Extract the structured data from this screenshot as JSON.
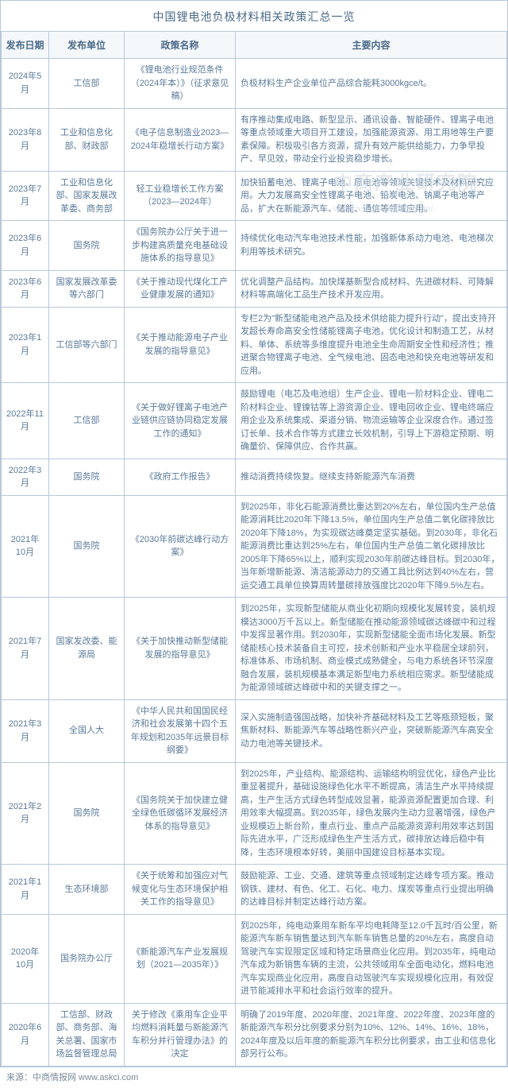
{
  "title": "中国锂电池负极材料相关政策汇总一览",
  "columns": [
    "发布日期",
    "发布单位",
    "政策名称",
    "主要内容"
  ],
  "rows": [
    {
      "date": "2024年5月",
      "dept": "工信部",
      "policy": "《锂电池行业规范条件（2024年本）》（征求意见稿）",
      "content": "负极材料生产企业单位产品综合能耗3000kgce/t。"
    },
    {
      "date": "2023年8月",
      "dept": "工业和信息化部、财政部",
      "policy": "《电子信息制造业2023—2024年稳增长行动方案》",
      "content": "有序推动集成电路、新型显示、通讯设备、智能硬件、锂离子电池等重点领域重大项目开工建设，加强能源资源、用工用地等生产要素保障。积极吸引各方资源，提升有效产能供给能力，力争早投产、早见效，带动全行业投资稳步增长。"
    },
    {
      "date": "2023年7月",
      "dept": "工业和信息化部、国家发展改革委、商务部",
      "policy": "轻工业稳增长工作方案（2023—2024年）",
      "content": "加快铅蓄电池、锂离子电池、原电池等领域关键技术及材料研究应用。大力发展高安全性锂离子电池、铅炭电池、钠离子电池等产品，扩大在新能源汽车、储能、通信等领域应用。"
    },
    {
      "date": "2023年6月",
      "dept": "国务院",
      "policy": "《国务院办公厅关于进一步构建高质量充电基础设施体系的指导意见》",
      "content": "持续优化电动汽车电池技术性能，加强新体系动力电池、电池梯次利用等技术研究。"
    },
    {
      "date": "2023年6月",
      "dept": "国家发展改革委等六部门",
      "policy": "《关于推动现代煤化工产业健康发展的通知》",
      "content": "优化调整产品结构。加快煤基新型合成材料、先进碳材料、可降解材料等高端化工品生产技术开发应用。"
    },
    {
      "date": "2023年1月",
      "dept": "工信部等六部门",
      "policy": "《关于推动能源电子产业发展的指导意见》",
      "content": "专栏2为\"新型储能电池产品及技术供给能力提升行动\"，提出支持开发超长寿命高安全性储能锂离子电池，优化设计和制造工艺，从材料、单体、系统等多维度提升电池全生命周期安全性和经济性；推进聚合物锂离子电池、全气候电池、固态电池和快充电池等研发和应用。"
    },
    {
      "date": "2022年11月",
      "dept": "工信部",
      "policy": "《关于做好锂离子电池产业链供应链协同稳定发展工作的通知》",
      "content": "鼓励锂电（电芯及电池组）生产企业、锂电一阶材料企业、锂电二阶材料企业、锂镍钴等上游资源企业、锂电回收企业、锂电终端应用企业及系统集成、渠道分销、物流运输等企业深度合作。通过签订长单、技术合作等方式建立长效机制，引导上下游稳定预期、明确量价、保障供应、合作共赢。"
    },
    {
      "date": "2022年3月",
      "dept": "国务院",
      "policy": "《政府工作报告》",
      "content": "推动消费持续恢复。继续支持新能源汽车消费"
    },
    {
      "date": "2021年10月",
      "dept": "国务院",
      "policy": "《2030年前碳达峰行动方案》",
      "content": "到2025年，非化石能源消费比重达到20%左右，单位国内生产总值能源消耗比2020年下降13.5%，单位国内生产总值二氧化碳排放比2020年下降18%，为实现碳达峰奠定坚实基础。到2030年，非化石能源消费比重达到25%左右，单位国内生产总值二氧化碳排放比2005年下降65%以上，顺利实现2030年前碳达峰目标。到2030年，当年新增新能源、清洁能源动力的交通工具比例达到40%左右，营运交通工具单位换算周转量碳排放强度比2020年下降9.5%左右。"
    },
    {
      "date": "2021年7月",
      "dept": "国家发改委、能源局",
      "policy": "《关于加快推动新型储能发展的指导意见》",
      "content": "到2025年，实现新型储能从商业化初期向规模化发展转变，装机规模达3000万千瓦以上。新型储能在推动能源领域碳达峰碳中和过程中发挥显著作用。到2030年，实现新型储能全面市场化发展。新型储能核心技术装备自主可控，技术创新和产业水平稳居全球前列，标准体系、市场机制、商业模式成熟健全，与电力系统各环节深度融合发展，装机规模基本满足新型电力系统相应需求。新型储能成为能源领域碳达峰碳中和的关键支撑之一。"
    },
    {
      "date": "2021年3月",
      "dept": "全国人大",
      "policy": "《中华人民共和国国民经济和社会发展第十四个五年规划和2035年远景目标纲要》",
      "content": "深入实施制造强国战略，加快补齐基础材料及工艺等瓶颈短板，聚焦新材料、新能源汽车等战略性新兴产业，突破新能源汽车高安全动力电池等关键技术。"
    },
    {
      "date": "2021年2月",
      "dept": "国务院",
      "policy": "《国务院关于加快建立健全绿色低碳循环发展经济体系的指导意见》",
      "content": "到2025年，产业结构、能源结构、运输结构明显优化，绿色产业比重显著提升，基础设施绿色化水平不断提高，清洁生产水平持续提高，生产生活方式绿色转型成效显著，能源资源配置更加合理、利用效率大幅提高。到2035年，绿色发展内生动力显著增强，绿色产业规模迈上新台阶，重点行业、重点产品能源资源利用效率达到国际先进水平，广泛形成绿色生产生活方式，碳排放达峰后稳中有降，生态环境根本好转，美丽中国建设目标基本实现。"
    },
    {
      "date": "2021年1月",
      "dept": "生态环境部",
      "policy": "《关于统筹和加强应对气候变化与生态环境保护相关工作的指导意见》",
      "content": "鼓励能源、工业、交通、建筑等重点领域制定达峰专项方案。推动钢铁、建材、有色、化工、石化、电力、煤炭等重点行业提出明确的达峰目标并制定达峰行动方案。"
    },
    {
      "date": "2020年10月",
      "dept": "国务院办公厅",
      "policy": "《新能源汽车产业发展规划（2021—2035年）》",
      "content": "到2025年，纯电动乘用车新车平均电耗降至12.0千瓦时/百公里，新能源汽车新车销售量达到汽车新车销售总量的20%左右，高度自动驾驶汽车实现限定区域和特定场景商业化应用。到2035年，纯电动汽车成为新销售车辆的主流，公共领域用车全面电动化，燃料电池汽车实现商业化应用，高度自动驾驶汽车实现规模化应用，有效促进节能减排水平和社会运行效率的提升。"
    },
    {
      "date": "2020年6月",
      "dept": "工信部、财政部、商务部、海关总署、国家市场监督管理总局",
      "policy": "关于修改《乘用车企业平均燃料消耗量与新能源汽车积分并行管理办法》的决定",
      "content": "明确了2019年度、2020年度、2021年度、2022年度、2023年度的新能源汽车积分比例要求分别为10%、12%、14%、16%、18%，2024年度及以后年度的新能源汽车积分比例要求，由工业和信息化部另行公布。"
    }
  ],
  "watermark": "中商产业研究院",
  "watermark_sub": "www.askci.com/reports/",
  "source": "来源：中商情报网 www.askci.com",
  "colors": {
    "border": "#b8c8d8",
    "header_bg": "#f5f8fb",
    "text": "#5a7a9a",
    "title": "#4a6a8a"
  }
}
